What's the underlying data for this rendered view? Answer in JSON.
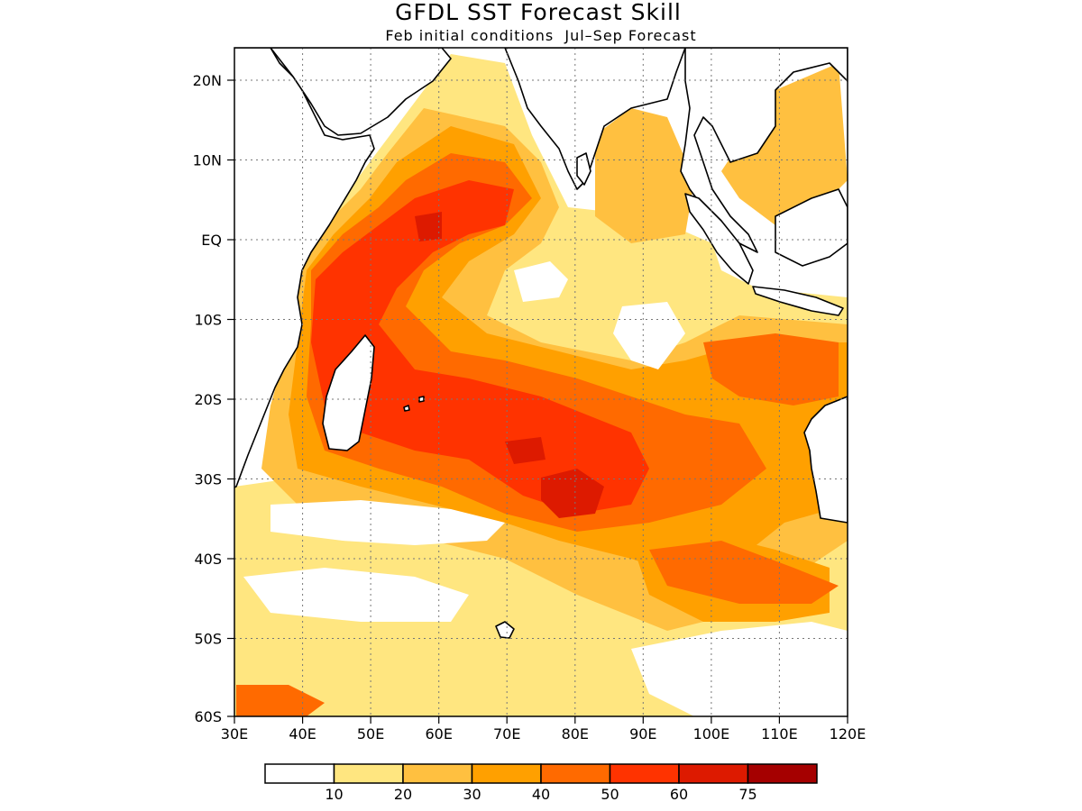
{
  "title": "GFDL SST Forecast Skill",
  "subtitle": "Feb initial conditions  Jul–Sep Forecast",
  "map": {
    "lon_range": [
      30,
      120
    ],
    "lat_range": [
      -60,
      24
    ],
    "x_tick_labels": [
      "30E",
      "40E",
      "50E",
      "60E",
      "70E",
      "80E",
      "90E",
      "100E",
      "110E",
      "120E"
    ],
    "y_tick_labels": [
      "20N",
      "10N",
      "EQ",
      "10S",
      "20S",
      "30S",
      "40S",
      "50S",
      "60S"
    ],
    "gridlines": "dotted"
  },
  "colorbar": {
    "levels": [
      "10",
      "20",
      "30",
      "40",
      "50",
      "60",
      "75"
    ],
    "colors": [
      "#ffffff",
      "#ffe680",
      "#ffc040",
      "#ffa000",
      "#ff6a00",
      "#ff3300",
      "#dd1a00",
      "#a50000"
    ]
  }
}
